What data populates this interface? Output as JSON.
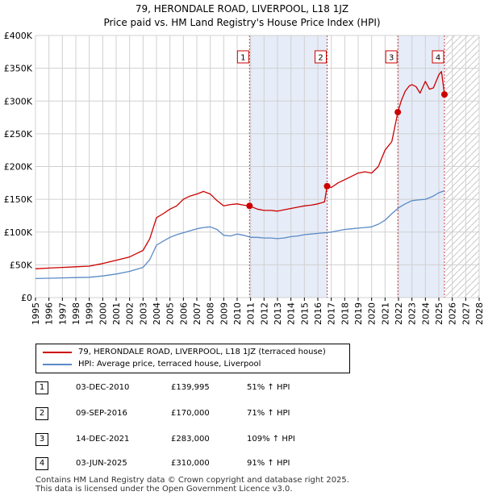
{
  "chart_data": {
    "type": "line",
    "title": "79, HERONDALE ROAD, LIVERPOOL, L18 1JZ",
    "subtitle": "Price paid vs. HM Land Registry's House Price Index (HPI)",
    "xlim": [
      1995,
      2028
    ],
    "ylim": [
      0,
      400000
    ],
    "x_ticks": [
      1995,
      1996,
      1997,
      1998,
      1999,
      2000,
      2001,
      2002,
      2003,
      2004,
      2005,
      2006,
      2007,
      2008,
      2009,
      2010,
      2011,
      2012,
      2013,
      2014,
      2015,
      2016,
      2017,
      2018,
      2019,
      2020,
      2021,
      2022,
      2023,
      2024,
      2025,
      2026,
      2027,
      2028
    ],
    "y_ticks": [
      {
        "value": 0,
        "label": "£0"
      },
      {
        "value": 50000,
        "label": "£50K"
      },
      {
        "value": 100000,
        "label": "£100K"
      },
      {
        "value": 150000,
        "label": "£150K"
      },
      {
        "value": 200000,
        "label": "£200K"
      },
      {
        "value": 250000,
        "label": "£250K"
      },
      {
        "value": 300000,
        "label": "£300K"
      },
      {
        "value": 350000,
        "label": "£350K"
      },
      {
        "value": 400000,
        "label": "£400K"
      }
    ],
    "grid": true,
    "projection_start": 2025.5,
    "series": [
      {
        "name": "79, HERONDALE ROAD, LIVERPOOL, L18 1JZ (terraced house)",
        "color": "#cc0000",
        "x": [
          1995,
          1996,
          1997,
          1998,
          1999,
          2000,
          2001,
          2002,
          2002.5,
          2003,
          2003.5,
          2004,
          2004.5,
          2005,
          2005.5,
          2006,
          2006.5,
          2007,
          2007.5,
          2008,
          2008.5,
          2009,
          2009.5,
          2010,
          2010.5,
          2010.92,
          2011.5,
          2012,
          2012.5,
          2013,
          2013.5,
          2014,
          2014.5,
          2015,
          2015.5,
          2016,
          2016.5,
          2016.69,
          2017,
          2017.5,
          2018,
          2018.5,
          2019,
          2019.5,
          2020,
          2020.5,
          2021,
          2021.5,
          2021.95,
          2022.2,
          2022.5,
          2022.8,
          2023,
          2023.3,
          2023.6,
          2024,
          2024.3,
          2024.6,
          2025,
          2025.2,
          2025.42
        ],
        "values": [
          44000,
          45000,
          46000,
          47000,
          48000,
          52000,
          57000,
          62000,
          67000,
          72000,
          90000,
          122000,
          128000,
          135000,
          140000,
          150000,
          155000,
          158000,
          162000,
          158000,
          148000,
          140000,
          142000,
          143000,
          141000,
          139995,
          135000,
          133000,
          133000,
          132000,
          134000,
          136000,
          138000,
          140000,
          141000,
          143000,
          146000,
          170000,
          168000,
          175000,
          180000,
          185000,
          190000,
          192000,
          190000,
          200000,
          225000,
          238000,
          283000,
          300000,
          315000,
          323000,
          325000,
          322000,
          312000,
          330000,
          318000,
          320000,
          340000,
          345000,
          310000
        ]
      },
      {
        "name": "HPI: Average price, terraced house, Liverpool",
        "color": "#5a8ac6",
        "x": [
          1995,
          1996,
          1997,
          1998,
          1999,
          2000,
          2001,
          2002,
          2003,
          2003.5,
          2004,
          2004.5,
          2005,
          2005.5,
          2006,
          2006.5,
          2007,
          2007.5,
          2008,
          2008.5,
          2009,
          2009.5,
          2010,
          2010.5,
          2011,
          2011.5,
          2012,
          2012.5,
          2013,
          2013.5,
          2014,
          2014.5,
          2015,
          2015.5,
          2016,
          2016.5,
          2017,
          2017.5,
          2018,
          2018.5,
          2019,
          2019.5,
          2020,
          2020.5,
          2021,
          2021.5,
          2022,
          2022.5,
          2023,
          2023.5,
          2024,
          2024.5,
          2025,
          2025.4
        ],
        "values": [
          29000,
          29500,
          30000,
          30500,
          31000,
          33000,
          36000,
          40000,
          46000,
          58000,
          80000,
          86000,
          92000,
          96000,
          99000,
          102000,
          105000,
          107000,
          108000,
          104000,
          95000,
          94000,
          97000,
          95000,
          92000,
          92000,
          91000,
          91000,
          90000,
          91000,
          93000,
          94000,
          96000,
          97000,
          98000,
          99000,
          100000,
          102000,
          104000,
          105000,
          106000,
          107000,
          108000,
          112000,
          118000,
          128000,
          137000,
          143000,
          148000,
          149000,
          150000,
          154000,
          160000,
          163000
        ]
      }
    ],
    "sales": [
      {
        "label": "1",
        "year": 2010.92,
        "price": 139995
      },
      {
        "label": "2",
        "year": 2016.69,
        "price": 170000
      },
      {
        "label": "3",
        "year": 2021.95,
        "price": 283000
      },
      {
        "label": "4",
        "year": 2025.42,
        "price": 310000
      }
    ]
  },
  "legend": {
    "property_label": "79, HERONDALE ROAD, LIVERPOOL, L18 1JZ (terraced house)",
    "hpi_label": "HPI: Average price, terraced house, Liverpool"
  },
  "sales_table": [
    {
      "num": "1",
      "date": "03-DEC-2010",
      "price": "£139,995",
      "hpi": "51% ↑ HPI"
    },
    {
      "num": "2",
      "date": "09-SEP-2016",
      "price": "£170,000",
      "hpi": "71% ↑ HPI"
    },
    {
      "num": "3",
      "date": "14-DEC-2021",
      "price": "£283,000",
      "hpi": "109% ↑ HPI"
    },
    {
      "num": "4",
      "date": "03-JUN-2025",
      "price": "£310,000",
      "hpi": "91% ↑ HPI"
    }
  ],
  "footer": {
    "line1": "Contains HM Land Registry data © Crown copyright and database right 2025.",
    "line2": "This data is licensed under the Open Government Licence v3.0."
  }
}
